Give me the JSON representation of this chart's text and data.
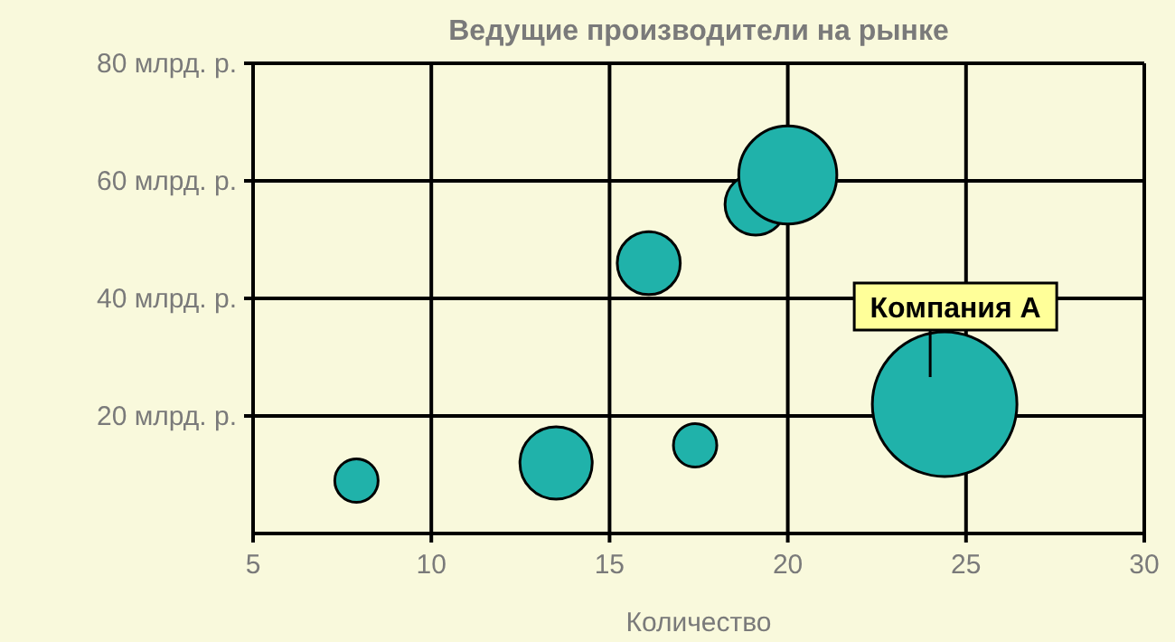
{
  "chart_data": {
    "type": "bubble",
    "title": "Ведущие производители на рынке",
    "xlabel": "Количество",
    "series": [
      {
        "color": "#20b2aa",
        "x": [
          7.9,
          13.5,
          17.4,
          16.1,
          19.1,
          20.0,
          24.4
        ],
        "values": [
          9,
          12,
          15,
          46,
          56,
          61,
          22
        ],
        "sizes": [
          0.09,
          0.25,
          0.09,
          0.19,
          0.18,
          0.46,
          1
        ]
      }
    ],
    "xlim": [
      5,
      30
    ],
    "xticks": [
      5,
      10,
      15,
      20,
      25,
      30
    ],
    "ylim": [
      0,
      80
    ],
    "yticks": [
      {
        "value": 20,
        "label": "20 млрд. р."
      },
      {
        "value": 40,
        "label": "40 млрд. р."
      },
      {
        "value": 60,
        "label": "60 млрд. р."
      },
      {
        "value": 80,
        "label": "80 млрд. р."
      }
    ],
    "grid": true,
    "annotations": [
      {
        "text": "Компания А",
        "x": 24.4,
        "y": 22
      }
    ]
  }
}
